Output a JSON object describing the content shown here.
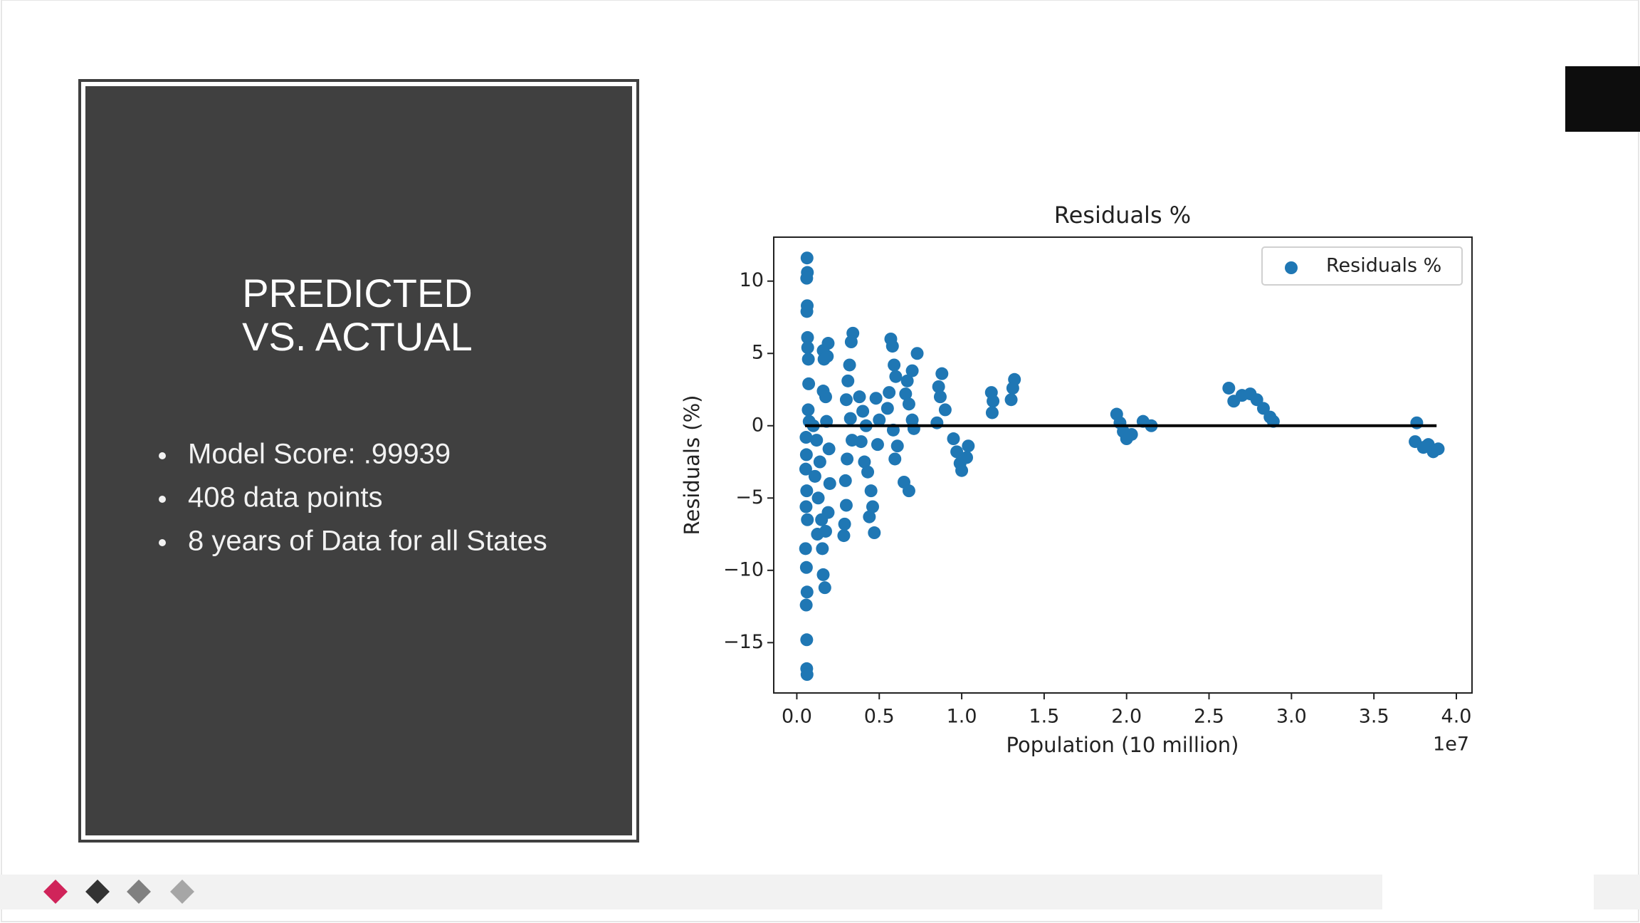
{
  "slide": {
    "title_lines": [
      "PREDICTED",
      "VS. ACTUAL"
    ],
    "bullets": [
      "Model Score: .99939",
      "408 data points",
      "8 years of Data for all States"
    ]
  },
  "chart_data": {
    "type": "scatter",
    "title": "Residuals %",
    "xlabel": "Population (10 million)",
    "ylabel": "Residuals (%)",
    "x_offset_label": "1e7",
    "xlim": [
      -1400000,
      40950000
    ],
    "ylim": [
      -18.48,
      13.04
    ],
    "xticks": [
      {
        "value": 0,
        "label": "0.0"
      },
      {
        "value": 5000000,
        "label": "0.5"
      },
      {
        "value": 10000000,
        "label": "1.0"
      },
      {
        "value": 15000000,
        "label": "1.5"
      },
      {
        "value": 20000000,
        "label": "2.0"
      },
      {
        "value": 25000000,
        "label": "2.5"
      },
      {
        "value": 30000000,
        "label": "3.0"
      },
      {
        "value": 35000000,
        "label": "3.5"
      },
      {
        "value": 40000000,
        "label": "4.0"
      }
    ],
    "yticks": [
      {
        "value": -15,
        "label": "−15"
      },
      {
        "value": -10,
        "label": "−10"
      },
      {
        "value": -5,
        "label": "−5"
      },
      0,
      5,
      10
    ],
    "legend": "upper right",
    "grid": false,
    "reference_line": {
      "x": [
        500000,
        38800000
      ],
      "y": [
        0,
        0
      ],
      "color": "#000000"
    },
    "x": [
      620000,
      640000,
      600000,
      630000,
      610000,
      650000,
      660000,
      700000,
      720000,
      690000,
      750000,
      560000,
      580000,
      540000,
      600000,
      560000,
      640000,
      530000,
      580000,
      620000,
      570000,
      600000,
      600000,
      620000,
      1600000,
      1650000,
      1600000,
      1000000,
      1200000,
      1400000,
      1100000,
      1300000,
      1500000,
      1250000,
      1550000,
      1600000,
      1700000,
      1900000,
      1850000,
      1750000,
      1800000,
      1950000,
      2000000,
      1900000,
      1750000,
      3400000,
      3300000,
      3200000,
      3100000,
      3000000,
      3250000,
      3350000,
      3050000,
      2950000,
      3000000,
      2900000,
      2850000,
      3800000,
      4000000,
      4200000,
      3900000,
      4100000,
      4300000,
      4500000,
      4600000,
      4400000,
      4700000,
      4800000,
      5000000,
      4900000,
      5700000,
      5800000,
      5900000,
      6000000,
      5600000,
      5500000,
      5850000,
      6100000,
      5950000,
      6700000,
      6600000,
      6800000,
      7000000,
      7100000,
      6500000,
      6800000,
      7300000,
      7000000,
      8800000,
      8600000,
      8700000,
      9000000,
      8500000,
      9500000,
      9700000,
      9900000,
      10000000,
      10300000,
      10400000,
      11800000,
      11900000,
      11850000,
      13200000,
      13100000,
      13000000,
      19400000,
      19600000,
      19800000,
      20000000,
      20300000,
      21000000,
      21500000,
      26200000,
      26500000,
      27000000,
      27500000,
      27900000,
      28300000,
      28700000,
      28900000,
      37600000,
      37500000,
      38000000,
      38300000,
      38600000,
      38900000
    ],
    "series": [
      {
        "name": "Residuals %",
        "color": "#1f77b4",
        "values": [
          11.6,
          10.6,
          10.2,
          8.3,
          7.9,
          6.1,
          5.4,
          4.6,
          2.9,
          1.1,
          0.3,
          -0.8,
          -2,
          -3,
          -4.5,
          -5.6,
          -6.5,
          -8.5,
          -9.8,
          -11.5,
          -12.4,
          -14.8,
          -16.8,
          -17.2,
          5.2,
          4.6,
          2.4,
          0,
          -1,
          -2.5,
          -3.5,
          -5,
          -6.5,
          -7.5,
          -8.5,
          -10.3,
          -11.2,
          5.7,
          4.8,
          2,
          0.3,
          -1.6,
          -4,
          -6,
          -7.3,
          6.4,
          5.8,
          4.2,
          3.1,
          1.8,
          0.5,
          -1,
          -2.3,
          -3.8,
          -5.5,
          -6.8,
          -7.6,
          2,
          1,
          0,
          -1.1,
          -2.5,
          -3.2,
          -4.5,
          -5.6,
          -6.3,
          -7.4,
          1.9,
          0.4,
          -1.3,
          6,
          5.5,
          4.2,
          3.4,
          2.3,
          1.2,
          -0.3,
          -1.4,
          -2.3,
          3.1,
          2.2,
          1.5,
          0.4,
          -0.2,
          -3.9,
          -4.5,
          5,
          3.8,
          3.6,
          2.7,
          2,
          1.1,
          0.2,
          -0.9,
          -1.8,
          -2.6,
          -3.1,
          -2.2,
          -1.4,
          2.3,
          1.7,
          0.9,
          3.2,
          2.6,
          1.8,
          0.8,
          0.2,
          -0.4,
          -0.9,
          -0.6,
          0.3,
          0,
          2.6,
          1.7,
          2.1,
          2.2,
          1.8,
          1.2,
          0.6,
          0.3,
          0.2,
          -1.1,
          -1.5,
          -1.3,
          -1.8,
          -1.6
        ]
      }
    ]
  }
}
